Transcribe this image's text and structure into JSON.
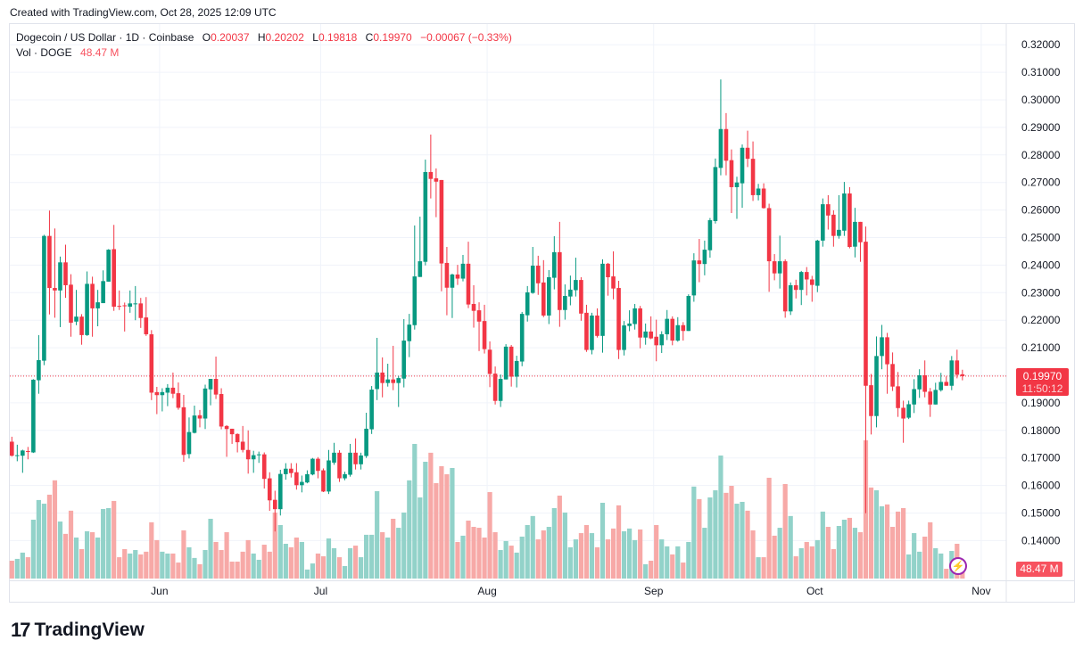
{
  "created": "Created with TradingView.com, Oct 28, 2025 12:09 UTC",
  "legend": {
    "symbol": "Dogecoin / US Dollar · 1D · Coinbase",
    "o_label": "O",
    "o": "0.20037",
    "h_label": "H",
    "h": "0.20202",
    "l_label": "L",
    "l": "0.19818",
    "c_label": "C",
    "c": "0.19970",
    "change": "−0.00067 (−0.33%)",
    "vol_label": "Vol · DOGE",
    "vol": "48.47 M"
  },
  "price_label": {
    "price": "0.19970",
    "countdown": "11:50:12"
  },
  "volume_label": "48.47 M",
  "logo": {
    "mark": "17",
    "name": "TradingView"
  },
  "colors": {
    "up": "#089981",
    "down": "#f23645",
    "vol_up": "#92d2c9",
    "vol_down": "#f7a9a7",
    "grid": "#f0f3fa"
  },
  "chart_data": {
    "type": "candlestick",
    "title": "Dogecoin / US Dollar · 1D · Coinbase",
    "ylim": [
      0.135,
      0.325
    ],
    "y_ticks": [
      "0.14000",
      "0.15000",
      "0.16000",
      "0.17000",
      "0.18000",
      "0.19000",
      "0.20000",
      "0.21000",
      "0.22000",
      "0.23000",
      "0.24000",
      "0.25000",
      "0.26000",
      "0.27000",
      "0.28000",
      "0.29000",
      "0.30000",
      "0.31000",
      "0.32000"
    ],
    "hidden_y_ticks": [
      "0.20000"
    ],
    "x_ticks": [
      {
        "label": "Jun",
        "index": 28
      },
      {
        "label": "Jul",
        "index": 58
      },
      {
        "label": "Aug",
        "index": 89
      },
      {
        "label": "Sep",
        "index": 120
      },
      {
        "label": "Oct",
        "index": 150
      },
      {
        "label": "Nov",
        "index": 181
      }
    ],
    "last_price": 0.1997,
    "volume_unit": "M",
    "ohlc_fields": [
      "open",
      "high",
      "low",
      "close",
      "volume_M"
    ],
    "candles": [
      [
        0.1759,
        0.1777,
        0.1705,
        0.1708,
        97
      ],
      [
        0.1708,
        0.1748,
        0.1688,
        0.171,
        107
      ],
      [
        0.1708,
        0.173,
        0.1646,
        0.1727,
        141
      ],
      [
        0.1725,
        0.174,
        0.1695,
        0.1723,
        116
      ],
      [
        0.172,
        0.1986,
        0.1718,
        0.1984,
        320
      ],
      [
        0.1982,
        0.2146,
        0.1933,
        0.2055,
        427
      ],
      [
        0.2053,
        0.251,
        0.2037,
        0.2506,
        407
      ],
      [
        0.2506,
        0.2598,
        0.2221,
        0.2317,
        456
      ],
      [
        0.2317,
        0.2533,
        0.2209,
        0.2308,
        534
      ],
      [
        0.2308,
        0.2431,
        0.2175,
        0.241,
        310
      ],
      [
        0.241,
        0.2474,
        0.2281,
        0.2327,
        243
      ],
      [
        0.2329,
        0.2367,
        0.214,
        0.2191,
        369
      ],
      [
        0.2195,
        0.231,
        0.2182,
        0.2213,
        223
      ],
      [
        0.2213,
        0.2222,
        0.2111,
        0.2146,
        160
      ],
      [
        0.2146,
        0.2377,
        0.2143,
        0.2332,
        257
      ],
      [
        0.2332,
        0.2358,
        0.214,
        0.2243,
        252
      ],
      [
        0.2243,
        0.231,
        0.2178,
        0.2265,
        223
      ],
      [
        0.2262,
        0.2381,
        0.2262,
        0.2342,
        378
      ],
      [
        0.234,
        0.2458,
        0.234,
        0.2456,
        383
      ],
      [
        0.2458,
        0.2546,
        0.2234,
        0.2249,
        422
      ],
      [
        0.2252,
        0.2308,
        0.2237,
        0.2249,
        116
      ],
      [
        0.2254,
        0.2264,
        0.2159,
        0.2252,
        160
      ],
      [
        0.2249,
        0.2308,
        0.2227,
        0.2261,
        136
      ],
      [
        0.2259,
        0.2324,
        0.22,
        0.2261,
        155
      ],
      [
        0.2261,
        0.2281,
        0.2172,
        0.2208,
        131
      ],
      [
        0.221,
        0.2284,
        0.2143,
        0.2149,
        146
      ],
      [
        0.2149,
        0.2164,
        0.191,
        0.1937,
        306
      ],
      [
        0.1939,
        0.1958,
        0.1859,
        0.1928,
        209
      ],
      [
        0.1928,
        0.1953,
        0.1869,
        0.1939,
        146
      ],
      [
        0.1937,
        0.1968,
        0.1888,
        0.1955,
        136
      ],
      [
        0.1955,
        0.201,
        0.1917,
        0.1933,
        136
      ],
      [
        0.1935,
        0.1974,
        0.1875,
        0.1882,
        87
      ],
      [
        0.1884,
        0.1929,
        0.1686,
        0.1711,
        262
      ],
      [
        0.1714,
        0.1847,
        0.1698,
        0.1794,
        170
      ],
      [
        0.1791,
        0.189,
        0.1789,
        0.1854,
        112
      ],
      [
        0.1855,
        0.1874,
        0.1811,
        0.1843,
        78
      ],
      [
        0.1843,
        0.1966,
        0.1805,
        0.1952,
        155
      ],
      [
        0.1949,
        0.1987,
        0.1891,
        0.1987,
        325
      ],
      [
        0.1987,
        0.2068,
        0.1914,
        0.193,
        199
      ],
      [
        0.1932,
        0.1953,
        0.1804,
        0.1814,
        155
      ],
      [
        0.1816,
        0.1819,
        0.1704,
        0.1805,
        252
      ],
      [
        0.1806,
        0.1806,
        0.1751,
        0.1786,
        92
      ],
      [
        0.1787,
        0.1789,
        0.172,
        0.1757,
        92
      ],
      [
        0.1759,
        0.1816,
        0.172,
        0.1729,
        146
      ],
      [
        0.1729,
        0.18,
        0.1643,
        0.1695,
        209
      ],
      [
        0.1695,
        0.1726,
        0.1646,
        0.171,
        136
      ],
      [
        0.1712,
        0.1723,
        0.1682,
        0.1713,
        102
      ],
      [
        0.1713,
        0.172,
        0.1589,
        0.1624,
        184
      ],
      [
        0.1626,
        0.1648,
        0.1508,
        0.1546,
        146
      ],
      [
        0.1548,
        0.1581,
        0.1433,
        0.1514,
        359
      ],
      [
        0.1514,
        0.1657,
        0.1491,
        0.1642,
        291
      ],
      [
        0.1641,
        0.1681,
        0.1621,
        0.1661,
        189
      ],
      [
        0.1661,
        0.1681,
        0.1629,
        0.1645,
        170
      ],
      [
        0.1648,
        0.1681,
        0.1585,
        0.1601,
        223
      ],
      [
        0.1601,
        0.1636,
        0.1575,
        0.1613,
        199
      ],
      [
        0.1611,
        0.1655,
        0.1608,
        0.1641,
        49
      ],
      [
        0.164,
        0.17,
        0.1637,
        0.1697,
        82
      ],
      [
        0.1697,
        0.1703,
        0.1626,
        0.1653,
        136
      ],
      [
        0.1655,
        0.1662,
        0.1576,
        0.1578,
        121
      ],
      [
        0.1578,
        0.1729,
        0.1569,
        0.1691,
        218
      ],
      [
        0.1683,
        0.1755,
        0.1675,
        0.1719,
        165
      ],
      [
        0.1719,
        0.1728,
        0.1613,
        0.1626,
        116
      ],
      [
        0.1626,
        0.165,
        0.1619,
        0.1641,
        68
      ],
      [
        0.1639,
        0.1751,
        0.1632,
        0.1719,
        165
      ],
      [
        0.1719,
        0.1771,
        0.1658,
        0.1677,
        179
      ],
      [
        0.1677,
        0.1719,
        0.1658,
        0.1709,
        116
      ],
      [
        0.1707,
        0.1864,
        0.17,
        0.1806,
        238
      ],
      [
        0.1804,
        0.1961,
        0.1787,
        0.1948,
        238
      ],
      [
        0.195,
        0.2136,
        0.191,
        0.201,
        475
      ],
      [
        0.201,
        0.2065,
        0.192,
        0.1972,
        252
      ],
      [
        0.1972,
        0.2042,
        0.1959,
        0.1985,
        223
      ],
      [
        0.1985,
        0.2107,
        0.1946,
        0.1972,
        325
      ],
      [
        0.1972,
        0.1998,
        0.1885,
        0.199,
        276
      ],
      [
        0.1988,
        0.2204,
        0.1956,
        0.2126,
        359
      ],
      [
        0.2124,
        0.2223,
        0.2066,
        0.2184,
        534
      ],
      [
        0.2182,
        0.2544,
        0.2166,
        0.2359,
        732
      ],
      [
        0.2357,
        0.2576,
        0.2357,
        0.2414,
        441
      ],
      [
        0.2412,
        0.2783,
        0.2399,
        0.2738,
        635
      ],
      [
        0.2738,
        0.2874,
        0.2642,
        0.2713,
        684
      ],
      [
        0.2715,
        0.2751,
        0.2574,
        0.2703,
        519
      ],
      [
        0.2709,
        0.2709,
        0.2305,
        0.2406,
        611
      ],
      [
        0.2408,
        0.2466,
        0.2218,
        0.2318,
        567
      ],
      [
        0.2318,
        0.2369,
        0.2208,
        0.2366,
        601
      ],
      [
        0.2366,
        0.2401,
        0.2328,
        0.2351,
        199
      ],
      [
        0.2351,
        0.2437,
        0.2341,
        0.2405,
        233
      ],
      [
        0.2405,
        0.2485,
        0.2244,
        0.2257,
        315
      ],
      [
        0.2259,
        0.2327,
        0.2173,
        0.2234,
        281
      ],
      [
        0.2236,
        0.2265,
        0.2088,
        0.2195,
        276
      ],
      [
        0.2197,
        0.2256,
        0.2079,
        0.2095,
        223
      ],
      [
        0.2093,
        0.2123,
        0.1957,
        0.2005,
        470
      ],
      [
        0.2006,
        0.2032,
        0.1894,
        0.1907,
        252
      ],
      [
        0.1907,
        0.2003,
        0.1885,
        0.1987,
        155
      ],
      [
        0.1985,
        0.2113,
        0.1985,
        0.2104,
        204
      ],
      [
        0.2104,
        0.211,
        0.1959,
        0.1995,
        179
      ],
      [
        0.1995,
        0.2071,
        0.1956,
        0.2052,
        141
      ],
      [
        0.205,
        0.223,
        0.2033,
        0.2223,
        228
      ],
      [
        0.2218,
        0.2324,
        0.2195,
        0.2301,
        291
      ],
      [
        0.2299,
        0.2466,
        0.2296,
        0.2398,
        340
      ],
      [
        0.2398,
        0.2434,
        0.2292,
        0.2334,
        213
      ],
      [
        0.2337,
        0.2418,
        0.2211,
        0.2217,
        262
      ],
      [
        0.2217,
        0.2382,
        0.2186,
        0.2356,
        281
      ],
      [
        0.2354,
        0.2505,
        0.2312,
        0.2447,
        383
      ],
      [
        0.2447,
        0.2557,
        0.2176,
        0.2237,
        451
      ],
      [
        0.2237,
        0.233,
        0.2202,
        0.2288,
        359
      ],
      [
        0.2286,
        0.2362,
        0.2254,
        0.2311,
        170
      ],
      [
        0.2309,
        0.2427,
        0.2286,
        0.2346,
        213
      ],
      [
        0.2346,
        0.2356,
        0.2198,
        0.2224,
        247
      ],
      [
        0.2227,
        0.2256,
        0.2085,
        0.2092,
        291
      ],
      [
        0.2092,
        0.2227,
        0.2076,
        0.2217,
        247
      ],
      [
        0.2217,
        0.2243,
        0.2137,
        0.2143,
        170
      ],
      [
        0.2143,
        0.2421,
        0.2082,
        0.2405,
        412
      ],
      [
        0.2405,
        0.2408,
        0.2289,
        0.2356,
        213
      ],
      [
        0.2359,
        0.245,
        0.2276,
        0.2315,
        272
      ],
      [
        0.2317,
        0.2343,
        0.2059,
        0.2092,
        398
      ],
      [
        0.2092,
        0.2197,
        0.2072,
        0.2181,
        257
      ],
      [
        0.2179,
        0.2236,
        0.216,
        0.2188,
        272
      ],
      [
        0.2186,
        0.2259,
        0.2166,
        0.2243,
        209
      ],
      [
        0.2243,
        0.2252,
        0.2098,
        0.2137,
        267
      ],
      [
        0.2137,
        0.2188,
        0.2111,
        0.2159,
        78
      ],
      [
        0.2159,
        0.2214,
        0.2131,
        0.2134,
        97
      ],
      [
        0.214,
        0.2202,
        0.2051,
        0.2109,
        291
      ],
      [
        0.2109,
        0.216,
        0.2081,
        0.2149,
        213
      ],
      [
        0.2149,
        0.2237,
        0.2128,
        0.2205,
        175
      ],
      [
        0.2205,
        0.2214,
        0.2109,
        0.2126,
        131
      ],
      [
        0.2126,
        0.2211,
        0.2122,
        0.2182,
        175
      ],
      [
        0.2182,
        0.2193,
        0.2126,
        0.2161,
        87
      ],
      [
        0.2161,
        0.2294,
        0.2161,
        0.2288,
        199
      ],
      [
        0.229,
        0.2443,
        0.2267,
        0.2417,
        500
      ],
      [
        0.2417,
        0.2495,
        0.2338,
        0.2404,
        432
      ],
      [
        0.2404,
        0.2489,
        0.2363,
        0.2456,
        276
      ],
      [
        0.2454,
        0.2571,
        0.2427,
        0.2563,
        441
      ],
      [
        0.256,
        0.2787,
        0.2551,
        0.2756,
        480
      ],
      [
        0.2753,
        0.3074,
        0.2726,
        0.2894,
        669
      ],
      [
        0.2894,
        0.2952,
        0.2726,
        0.2779,
        466
      ],
      [
        0.2781,
        0.282,
        0.2589,
        0.2683,
        504
      ],
      [
        0.2683,
        0.2721,
        0.2568,
        0.27,
        407
      ],
      [
        0.2697,
        0.2838,
        0.2608,
        0.2826,
        417
      ],
      [
        0.2826,
        0.2888,
        0.2756,
        0.2786,
        369
      ],
      [
        0.2786,
        0.2849,
        0.2633,
        0.2654,
        262
      ],
      [
        0.2654,
        0.2695,
        0.2635,
        0.2678,
        116
      ],
      [
        0.2678,
        0.2697,
        0.2605,
        0.2607,
        116
      ],
      [
        0.2607,
        0.2623,
        0.2303,
        0.2414,
        548
      ],
      [
        0.2414,
        0.244,
        0.2345,
        0.237,
        233
      ],
      [
        0.237,
        0.2507,
        0.2315,
        0.2414,
        276
      ],
      [
        0.2414,
        0.2421,
        0.2209,
        0.2232,
        514
      ],
      [
        0.2232,
        0.2337,
        0.2219,
        0.2327,
        340
      ],
      [
        0.2327,
        0.2347,
        0.2279,
        0.231,
        121
      ],
      [
        0.231,
        0.2379,
        0.2255,
        0.2375,
        165
      ],
      [
        0.2375,
        0.2393,
        0.229,
        0.2348,
        199
      ],
      [
        0.2348,
        0.2361,
        0.2267,
        0.2328,
        175
      ],
      [
        0.2325,
        0.2492,
        0.2302,
        0.2489,
        209
      ],
      [
        0.2489,
        0.2642,
        0.2467,
        0.2621,
        364
      ],
      [
        0.2621,
        0.2654,
        0.2529,
        0.258,
        281
      ],
      [
        0.2583,
        0.2599,
        0.2467,
        0.2506,
        160
      ],
      [
        0.2506,
        0.2654,
        0.2496,
        0.2528,
        286
      ],
      [
        0.2525,
        0.2702,
        0.2506,
        0.266,
        320
      ],
      [
        0.266,
        0.2683,
        0.2461,
        0.2466,
        330
      ],
      [
        0.2467,
        0.2608,
        0.2428,
        0.2557,
        276
      ],
      [
        0.2557,
        0.2557,
        0.2412,
        0.2483,
        252
      ],
      [
        0.2485,
        0.254,
        0.1499,
        0.1962,
        752
      ],
      [
        0.1964,
        0.2005,
        0.1785,
        0.1852,
        495
      ],
      [
        0.1852,
        0.2141,
        0.1811,
        0.207,
        480
      ],
      [
        0.207,
        0.2183,
        0.2022,
        0.2138,
        393
      ],
      [
        0.2138,
        0.2154,
        0.1933,
        0.204,
        403
      ],
      [
        0.2041,
        0.2083,
        0.1943,
        0.1959,
        281
      ],
      [
        0.196,
        0.2012,
        0.1849,
        0.1881,
        364
      ],
      [
        0.1882,
        0.1908,
        0.1755,
        0.1843,
        383
      ],
      [
        0.1846,
        0.1908,
        0.1841,
        0.1895,
        131
      ],
      [
        0.1894,
        0.1986,
        0.1863,
        0.195,
        247
      ],
      [
        0.1949,
        0.2022,
        0.1918,
        0.2,
        146
      ],
      [
        0.2,
        0.2054,
        0.192,
        0.194,
        228
      ],
      [
        0.1941,
        0.1954,
        0.1849,
        0.1894,
        306
      ],
      [
        0.1894,
        0.1973,
        0.1894,
        0.1947,
        165
      ],
      [
        0.1946,
        0.2009,
        0.1941,
        0.1976,
        136
      ],
      [
        0.1976,
        0.1996,
        0.1962,
        0.1962,
        53
      ],
      [
        0.1962,
        0.207,
        0.1946,
        0.2054,
        150
      ],
      [
        0.2054,
        0.2093,
        0.1989,
        0.2002,
        189
      ],
      [
        0.20037,
        0.20202,
        0.19818,
        0.1997,
        48.47
      ]
    ]
  }
}
